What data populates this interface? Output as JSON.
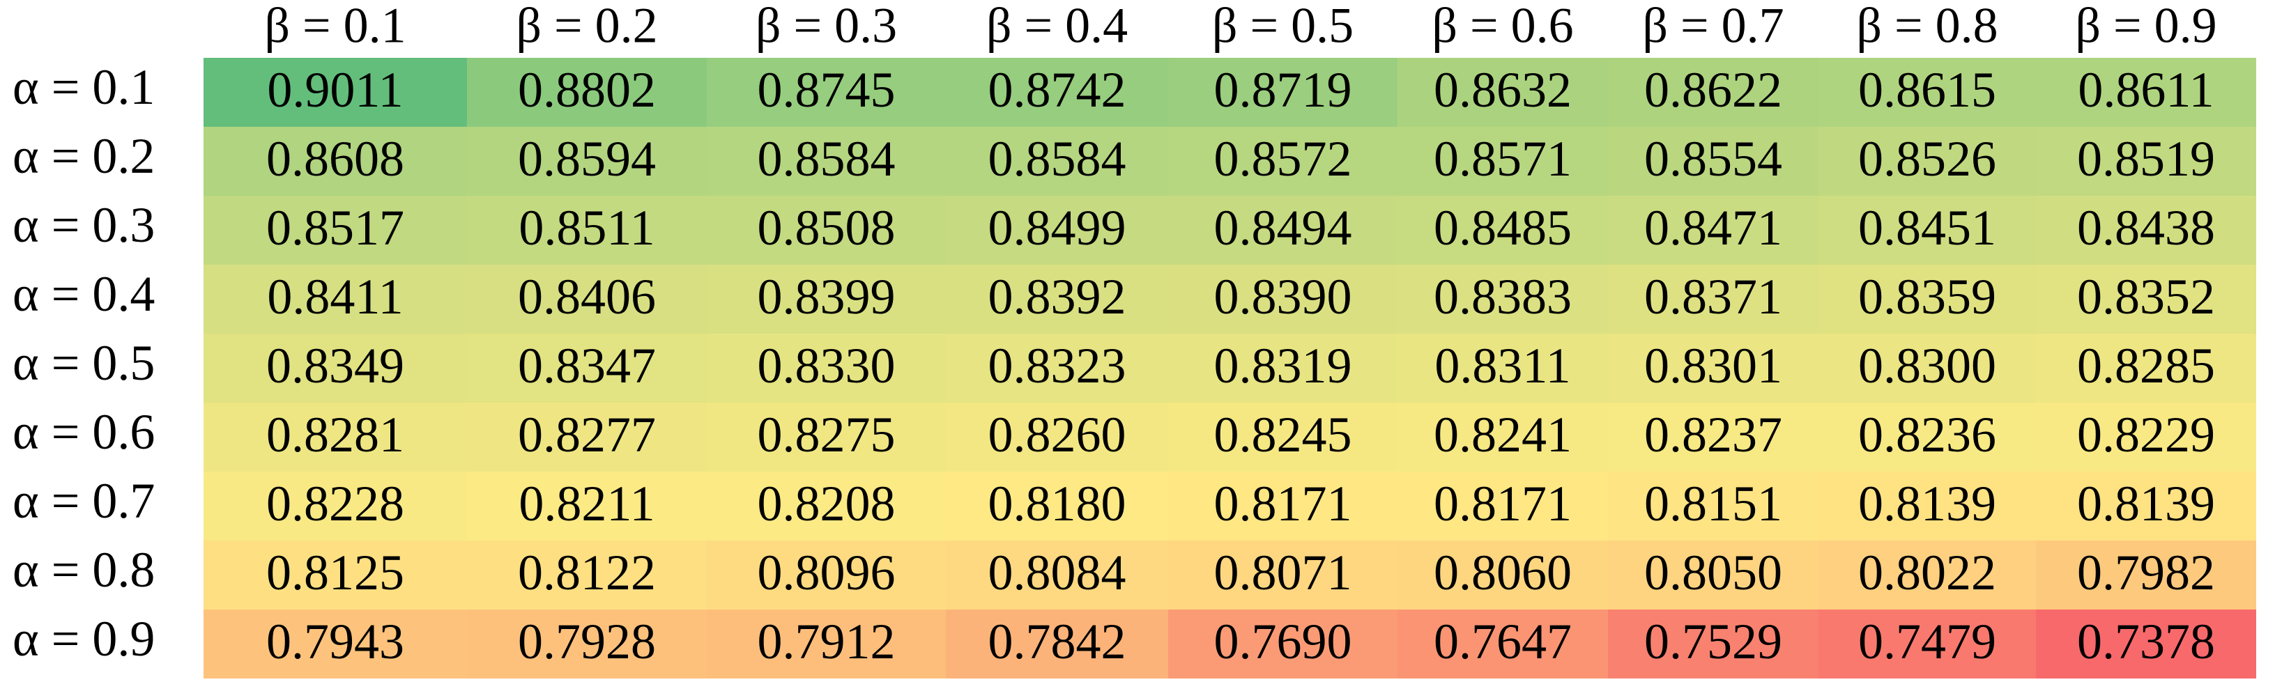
{
  "chart_data": {
    "type": "heatmap",
    "x_categories": [
      "β = 0.1",
      "β = 0.2",
      "β = 0.3",
      "β = 0.4",
      "β = 0.5",
      "β = 0.6",
      "β = 0.7",
      "β = 0.8",
      "β = 0.9"
    ],
    "y_categories": [
      "α = 0.1",
      "α = 0.2",
      "α = 0.3",
      "α = 0.4",
      "α = 0.5",
      "α = 0.6",
      "α = 0.7",
      "α = 0.8",
      "α = 0.9"
    ],
    "values": [
      [
        0.9011,
        0.8802,
        0.8745,
        0.8742,
        0.8719,
        0.8632,
        0.8622,
        0.8615,
        0.8611
      ],
      [
        0.8608,
        0.8594,
        0.8584,
        0.8584,
        0.8572,
        0.8571,
        0.8554,
        0.8526,
        0.8519
      ],
      [
        0.8517,
        0.8511,
        0.8508,
        0.8499,
        0.8494,
        0.8485,
        0.8471,
        0.8451,
        0.8438
      ],
      [
        0.8411,
        0.8406,
        0.8399,
        0.8392,
        0.839,
        0.8383,
        0.8371,
        0.8359,
        0.8352
      ],
      [
        0.8349,
        0.8347,
        0.833,
        0.8323,
        0.8319,
        0.8311,
        0.8301,
        0.83,
        0.8285
      ],
      [
        0.8281,
        0.8277,
        0.8275,
        0.826,
        0.8245,
        0.8241,
        0.8237,
        0.8236,
        0.8229
      ],
      [
        0.8228,
        0.8211,
        0.8208,
        0.818,
        0.8171,
        0.8171,
        0.8151,
        0.8139,
        0.8139
      ],
      [
        0.8125,
        0.8122,
        0.8096,
        0.8084,
        0.8071,
        0.806,
        0.805,
        0.8022,
        0.7982
      ],
      [
        0.7943,
        0.7928,
        0.7912,
        0.7842,
        0.769,
        0.7647,
        0.7529,
        0.7479,
        0.7378
      ]
    ],
    "value_labels": [
      [
        "0.9011",
        "0.8802",
        "0.8745",
        "0.8742",
        "0.8719",
        "0.8632",
        "0.8622",
        "0.8615",
        "0.8611"
      ],
      [
        "0.8608",
        "0.8594",
        "0.8584",
        "0.8584",
        "0.8572",
        "0.8571",
        "0.8554",
        "0.8526",
        "0.8519"
      ],
      [
        "0.8517",
        "0.8511",
        "0.8508",
        "0.8499",
        "0.8494",
        "0.8485",
        "0.8471",
        "0.8451",
        "0.8438"
      ],
      [
        "0.8411",
        "0.8406",
        "0.8399",
        "0.8392",
        "0.8390",
        "0.8383",
        "0.8371",
        "0.8359",
        "0.8352"
      ],
      [
        "0.8349",
        "0.8347",
        "0.8330",
        "0.8323",
        "0.8319",
        "0.8311",
        "0.8301",
        "0.8300",
        "0.8285"
      ],
      [
        "0.8281",
        "0.8277",
        "0.8275",
        "0.8260",
        "0.8245",
        "0.8241",
        "0.8237",
        "0.8236",
        "0.8229"
      ],
      [
        "0.8228",
        "0.8211",
        "0.8208",
        "0.8180",
        "0.8171",
        "0.8171",
        "0.8151",
        "0.8139",
        "0.8139"
      ],
      [
        "0.8125",
        "0.8122",
        "0.8096",
        "0.8084",
        "0.8071",
        "0.8060",
        "0.8050",
        "0.8022",
        "0.7982"
      ],
      [
        "0.7943",
        "0.7928",
        "0.7912",
        "0.7842",
        "0.7690",
        "0.7647",
        "0.7529",
        "0.7479",
        "0.7378"
      ]
    ],
    "colors": [
      "#f8696b",
      "#ffeb84",
      "#63be7b"
    ]
  }
}
